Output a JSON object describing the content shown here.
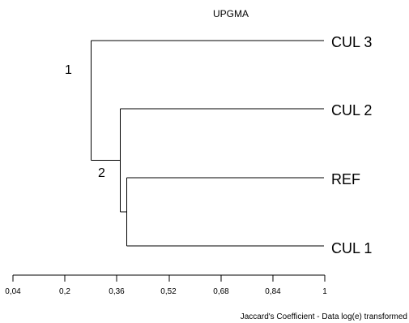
{
  "diagram": {
    "title": "UPGMA",
    "axis_caption": "Jaccard's Coefficient - Data log(e) transformed",
    "leaves": [
      "CUL 3",
      "CUL 2",
      "REF",
      "CUL 1"
    ],
    "node_labels": [
      "1",
      "2"
    ],
    "ticks": [
      "0,04",
      "0,2",
      "0,36",
      "0,52",
      "0,68",
      "0,84",
      "1"
    ]
  },
  "chart_data": {
    "type": "dendrogram",
    "method": "UPGMA",
    "xlabel": "Jaccard's Coefficient - Data log(e) transformed",
    "xlim": [
      0.04,
      1
    ],
    "ticks": [
      0.04,
      0.2,
      0.36,
      0.52,
      0.68,
      0.84,
      1
    ],
    "leaves": [
      "CUL 3",
      "CUL 2",
      "REF",
      "CUL 1"
    ],
    "merges": [
      {
        "label": "",
        "children": [
          "REF",
          "CUL 1"
        ],
        "height": 0.39
      },
      {
        "label": "2",
        "children": [
          "CUL 2",
          "REF+CUL 1"
        ],
        "height": 0.37
      },
      {
        "label": "1",
        "children": [
          "CUL 3",
          "CUL 2+REF+CUL 1"
        ],
        "height": 0.28
      }
    ]
  }
}
